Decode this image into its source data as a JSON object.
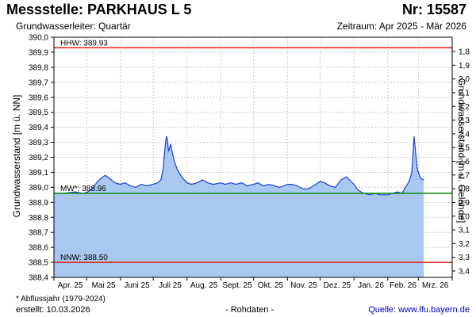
{
  "header": {
    "title": "Messstelle: PARKHAUS L 5",
    "number": "Nr: 15587",
    "aquifer": "Grundwasserleiter: Quartär",
    "period": "Zeitraum: Apr 2025 - Mär 2026"
  },
  "footer": {
    "footnote": "* Abflussjahr (1979-2024)",
    "created": "erstellt:  10.03.2026",
    "rawdata": "- Rohdaten -",
    "source": "Quelle:  www.lfu.bayern.de"
  },
  "colors": {
    "fill": "#a8c8f0",
    "line": "#1a3fd9",
    "hhw": "#e02020",
    "nnw": "#e02020",
    "mw": "#189018",
    "grid": "#c8c8c8"
  },
  "chart_data": {
    "type": "area",
    "ylabel_left": "Grundwasserstand [m ü. NN]",
    "ylabel_right": "Grundwasserstand [m u. Gelände]",
    "ylim": [
      388.4,
      390.0
    ],
    "yticks": [
      "390,0",
      "389,9",
      "389,8",
      "389,7",
      "389,6",
      "389,5",
      "389,4",
      "389,3",
      "389,2",
      "389,1",
      "389,0",
      "388,9",
      "388,8",
      "388,7",
      "388,6",
      "388,5",
      "388,4"
    ],
    "right_yticks": [
      "1,8",
      "1,9",
      "2,0",
      "2,1",
      "2,2",
      "2,3",
      "2,4",
      "2,5",
      "2,6",
      "2,7",
      "2,8",
      "2,9",
      "3,0",
      "3,1",
      "3,2",
      "3,3",
      "3,4"
    ],
    "xticks": [
      "Apr. 25",
      "Mai 25",
      "Juni 25",
      "Juli 25",
      "Aug. 25",
      "Sept. 25",
      "Okt. 25",
      "Nov. 25",
      "Dez. 25",
      "Jan. 26",
      "Feb. 26",
      "Mrz. 26"
    ],
    "grid": true,
    "reference_lines": [
      {
        "label": "HHW: 389.93",
        "value": 389.93,
        "color": "#e02020"
      },
      {
        "label": "MW*: 388.96",
        "value": 388.96,
        "color": "#189018"
      },
      {
        "label": "NNW: 388.50",
        "value": 388.5,
        "color": "#e02020"
      }
    ],
    "series": [
      {
        "x": [
          "2025-04-01",
          "2025-04-10",
          "2025-04-20",
          "2025-04-28",
          "2025-05-02",
          "2025-05-06",
          "2025-05-10",
          "2025-05-14",
          "2025-05-18",
          "2025-05-22",
          "2025-05-27",
          "2025-06-01",
          "2025-06-05",
          "2025-06-10",
          "2025-06-15",
          "2025-06-20",
          "2025-06-25",
          "2025-07-01",
          "2025-07-05",
          "2025-07-08",
          "2025-07-10",
          "2025-07-12",
          "2025-07-13",
          "2025-07-14",
          "2025-07-15",
          "2025-07-17",
          "2025-07-18",
          "2025-07-20",
          "2025-07-23",
          "2025-07-27",
          "2025-08-01",
          "2025-08-05",
          "2025-08-10",
          "2025-08-15",
          "2025-08-20",
          "2025-08-25",
          "2025-09-01",
          "2025-09-05",
          "2025-09-10",
          "2025-09-15",
          "2025-09-20",
          "2025-09-25",
          "2025-10-01",
          "2025-10-05",
          "2025-10-10",
          "2025-10-15",
          "2025-10-20",
          "2025-10-25",
          "2025-11-01",
          "2025-11-05",
          "2025-11-10",
          "2025-11-15",
          "2025-11-20",
          "2025-11-25",
          "2025-12-01",
          "2025-12-05",
          "2025-12-10",
          "2025-12-15",
          "2025-12-20",
          "2025-12-25",
          "2026-01-01",
          "2026-01-05",
          "2026-01-10",
          "2026-01-15",
          "2026-01-20",
          "2026-01-25",
          "2026-02-01",
          "2026-02-05",
          "2026-02-10",
          "2026-02-14",
          "2026-02-17",
          "2026-02-19",
          "2026-02-21",
          "2026-02-23",
          "2026-02-25",
          "2026-02-28",
          "2026-03-03",
          "2026-03-06"
        ],
        "values": [
          388.96,
          388.96,
          388.97,
          388.96,
          388.97,
          388.99,
          389.03,
          389.06,
          389.08,
          389.06,
          389.03,
          389.02,
          389.03,
          389.01,
          389.0,
          389.02,
          389.01,
          389.02,
          389.03,
          389.05,
          389.12,
          389.28,
          389.34,
          389.32,
          389.24,
          389.29,
          389.25,
          389.18,
          389.12,
          389.07,
          389.03,
          389.02,
          389.03,
          389.05,
          389.03,
          389.02,
          389.03,
          389.02,
          389.03,
          389.02,
          389.03,
          389.01,
          389.02,
          389.03,
          389.01,
          389.02,
          389.01,
          389.0,
          389.02,
          389.02,
          389.01,
          388.99,
          388.99,
          389.01,
          389.04,
          389.03,
          389.01,
          389.0,
          389.05,
          389.07,
          389.02,
          388.98,
          388.96,
          388.95,
          388.96,
          388.95,
          388.95,
          388.96,
          388.97,
          388.96,
          389.0,
          389.02,
          389.05,
          389.1,
          389.34,
          389.12,
          389.06,
          389.05
        ]
      }
    ]
  }
}
